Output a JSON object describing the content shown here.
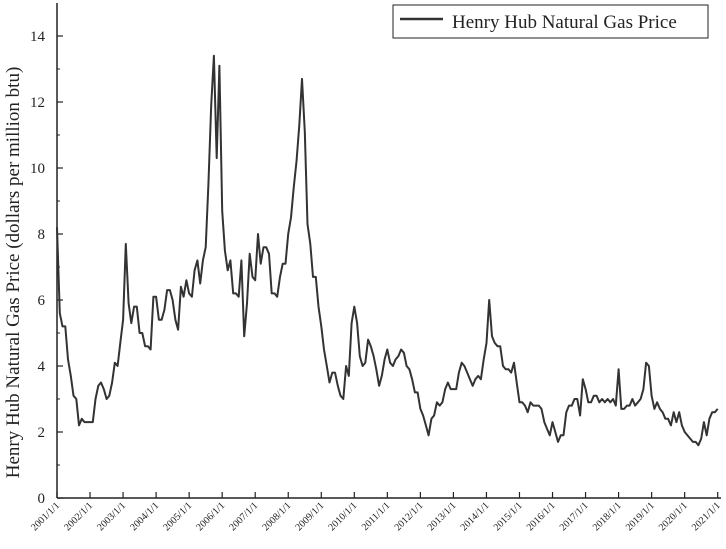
{
  "chart_data": {
    "type": "line",
    "ylabel": "Henry Hub Natural Gas Price (dollars per million btu)",
    "xlabel": "",
    "ylim": [
      0,
      15
    ],
    "yticks": [
      0,
      2,
      4,
      6,
      8,
      10,
      12,
      14
    ],
    "xticks": [
      "2001/1/1",
      "2002/1/1",
      "2003/1/1",
      "2004/1/1",
      "2005/1/1",
      "2006/1/1",
      "2007/1/1",
      "2008/1/1",
      "2009/1/1",
      "2010/1/1",
      "2011/1/1",
      "2012/1/1",
      "2013/1/1",
      "2014/1/1",
      "2015/1/1",
      "2016/1/1",
      "2017/1/1",
      "2018/1/1",
      "2019/1/1",
      "2020/1/1",
      "2021/1/1"
    ],
    "legend": {
      "position": "top-right"
    },
    "grid": false,
    "series": [
      {
        "name": "Henry Hub Natural Gas Price",
        "color": "#333333",
        "x": [
          "2001-01",
          "2001-02",
          "2001-03",
          "2001-04",
          "2001-05",
          "2001-06",
          "2001-07",
          "2001-08",
          "2001-09",
          "2001-10",
          "2001-11",
          "2001-12",
          "2002-01",
          "2002-02",
          "2002-03",
          "2002-04",
          "2002-05",
          "2002-06",
          "2002-07",
          "2002-08",
          "2002-09",
          "2002-10",
          "2002-11",
          "2002-12",
          "2003-01",
          "2003-02",
          "2003-03",
          "2003-04",
          "2003-05",
          "2003-06",
          "2003-07",
          "2003-08",
          "2003-09",
          "2003-10",
          "2003-11",
          "2003-12",
          "2004-01",
          "2004-02",
          "2004-03",
          "2004-04",
          "2004-05",
          "2004-06",
          "2004-07",
          "2004-08",
          "2004-09",
          "2004-10",
          "2004-11",
          "2004-12",
          "2005-01",
          "2005-02",
          "2005-03",
          "2005-04",
          "2005-05",
          "2005-06",
          "2005-07",
          "2005-08",
          "2005-09",
          "2005-10",
          "2005-11",
          "2005-12",
          "2006-01",
          "2006-02",
          "2006-03",
          "2006-04",
          "2006-05",
          "2006-06",
          "2006-07",
          "2006-08",
          "2006-09",
          "2006-10",
          "2006-11",
          "2006-12",
          "2007-01",
          "2007-02",
          "2007-03",
          "2007-04",
          "2007-05",
          "2007-06",
          "2007-07",
          "2007-08",
          "2007-09",
          "2007-10",
          "2007-11",
          "2007-12",
          "2008-01",
          "2008-02",
          "2008-03",
          "2008-04",
          "2008-05",
          "2008-06",
          "2008-07",
          "2008-08",
          "2008-09",
          "2008-10",
          "2008-11",
          "2008-12",
          "2009-01",
          "2009-02",
          "2009-03",
          "2009-04",
          "2009-05",
          "2009-06",
          "2009-07",
          "2009-08",
          "2009-09",
          "2009-10",
          "2009-11",
          "2009-12",
          "2010-01",
          "2010-02",
          "2010-03",
          "2010-04",
          "2010-05",
          "2010-06",
          "2010-07",
          "2010-08",
          "2010-09",
          "2010-10",
          "2010-11",
          "2010-12",
          "2011-01",
          "2011-02",
          "2011-03",
          "2011-04",
          "2011-05",
          "2011-06",
          "2011-07",
          "2011-08",
          "2011-09",
          "2011-10",
          "2011-11",
          "2011-12",
          "2012-01",
          "2012-02",
          "2012-03",
          "2012-04",
          "2012-05",
          "2012-06",
          "2012-07",
          "2012-08",
          "2012-09",
          "2012-10",
          "2012-11",
          "2012-12",
          "2013-01",
          "2013-02",
          "2013-03",
          "2013-04",
          "2013-05",
          "2013-06",
          "2013-07",
          "2013-08",
          "2013-09",
          "2013-10",
          "2013-11",
          "2013-12",
          "2014-01",
          "2014-02",
          "2014-03",
          "2014-04",
          "2014-05",
          "2014-06",
          "2014-07",
          "2014-08",
          "2014-09",
          "2014-10",
          "2014-11",
          "2014-12",
          "2015-01",
          "2015-02",
          "2015-03",
          "2015-04",
          "2015-05",
          "2015-06",
          "2015-07",
          "2015-08",
          "2015-09",
          "2015-10",
          "2015-11",
          "2015-12",
          "2016-01",
          "2016-02",
          "2016-03",
          "2016-04",
          "2016-05",
          "2016-06",
          "2016-07",
          "2016-08",
          "2016-09",
          "2016-10",
          "2016-11",
          "2016-12",
          "2017-01",
          "2017-02",
          "2017-03",
          "2017-04",
          "2017-05",
          "2017-06",
          "2017-07",
          "2017-08",
          "2017-09",
          "2017-10",
          "2017-11",
          "2017-12",
          "2018-01",
          "2018-02",
          "2018-03",
          "2018-04",
          "2018-05",
          "2018-06",
          "2018-07",
          "2018-08",
          "2018-09",
          "2018-10",
          "2018-11",
          "2018-12",
          "2019-01",
          "2019-02",
          "2019-03",
          "2019-04",
          "2019-05",
          "2019-06",
          "2019-07",
          "2019-08",
          "2019-09",
          "2019-10",
          "2019-11",
          "2019-12",
          "2020-01",
          "2020-02",
          "2020-03",
          "2020-04",
          "2020-05",
          "2020-06",
          "2020-07",
          "2020-08",
          "2020-09",
          "2020-10",
          "2020-11",
          "2020-12",
          "2021-01"
        ],
        "values": [
          8.2,
          5.6,
          5.2,
          5.2,
          4.2,
          3.7,
          3.1,
          3.0,
          2.2,
          2.4,
          2.3,
          2.3,
          2.3,
          2.3,
          3.0,
          3.4,
          3.5,
          3.3,
          3.0,
          3.1,
          3.5,
          4.1,
          4.0,
          4.7,
          5.4,
          7.7,
          5.9,
          5.3,
          5.8,
          5.8,
          5.0,
          5.0,
          4.6,
          4.6,
          4.5,
          6.1,
          6.1,
          5.4,
          5.4,
          5.7,
          6.3,
          6.3,
          6.0,
          5.4,
          5.1,
          6.4,
          6.1,
          6.6,
          6.2,
          6.1,
          6.9,
          7.2,
          6.5,
          7.2,
          7.6,
          9.5,
          11.9,
          13.4,
          10.3,
          13.1,
          8.7,
          7.5,
          6.9,
          7.2,
          6.2,
          6.2,
          6.1,
          7.2,
          4.9,
          5.9,
          7.4,
          6.7,
          6.6,
          8.0,
          7.1,
          7.6,
          7.6,
          7.4,
          6.2,
          6.2,
          6.1,
          6.7,
          7.1,
          7.1,
          8.0,
          8.5,
          9.4,
          10.2,
          11.3,
          12.7,
          11.1,
          8.3,
          7.7,
          6.7,
          6.7,
          5.8,
          5.2,
          4.5,
          4.0,
          3.5,
          3.8,
          3.8,
          3.4,
          3.1,
          3.0,
          4.0,
          3.7,
          5.3,
          5.8,
          5.3,
          4.3,
          4.0,
          4.1,
          4.8,
          4.6,
          4.3,
          3.9,
          3.4,
          3.7,
          4.2,
          4.5,
          4.1,
          4.0,
          4.2,
          4.3,
          4.5,
          4.4,
          4.0,
          3.9,
          3.6,
          3.2,
          3.2,
          2.7,
          2.5,
          2.2,
          1.9,
          2.4,
          2.5,
          2.9,
          2.8,
          2.9,
          3.3,
          3.5,
          3.3,
          3.3,
          3.3,
          3.8,
          4.1,
          4.0,
          3.8,
          3.6,
          3.4,
          3.6,
          3.7,
          3.6,
          4.2,
          4.7,
          6.0,
          4.9,
          4.7,
          4.6,
          4.6,
          4.0,
          3.9,
          3.9,
          3.8,
          4.1,
          3.5,
          2.9,
          2.9,
          2.8,
          2.6,
          2.9,
          2.8,
          2.8,
          2.8,
          2.7,
          2.3,
          2.1,
          1.9,
          2.3,
          2.0,
          1.7,
          1.9,
          1.9,
          2.6,
          2.8,
          2.8,
          3.0,
          3.0,
          2.5,
          3.6,
          3.3,
          2.9,
          2.9,
          3.1,
          3.1,
          2.9,
          3.0,
          2.9,
          3.0,
          2.9,
          3.0,
          2.8,
          3.9,
          2.7,
          2.7,
          2.8,
          2.8,
          3.0,
          2.8,
          2.9,
          3.0,
          3.3,
          4.1,
          4.0,
          3.1,
          2.7,
          2.9,
          2.7,
          2.6,
          2.4,
          2.4,
          2.2,
          2.6,
          2.3,
          2.6,
          2.2,
          2.0,
          1.9,
          1.8,
          1.7,
          1.7,
          1.6,
          1.8,
          2.3,
          1.9,
          2.4,
          2.6,
          2.6,
          2.7
        ]
      }
    ]
  }
}
